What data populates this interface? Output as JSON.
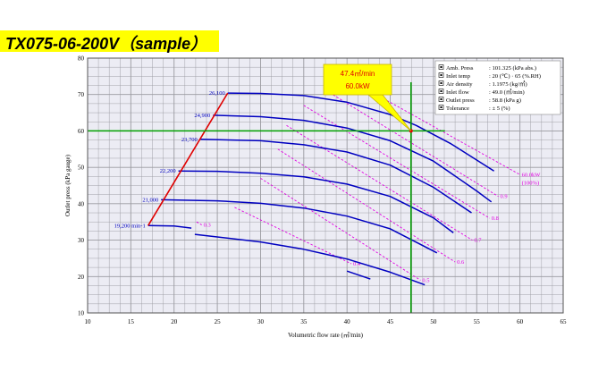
{
  "title": "TX075-06-200V（sample）",
  "colors": {
    "background": "#ececf4",
    "grid": "#9a9aa0",
    "performance_curve": "#0000c0",
    "power_curve": "#e000e0",
    "surge_line": "#e00000",
    "operating_point_cross": "#00a000",
    "callout_fill": "#ffff00",
    "callout_text": "#e00000",
    "title_bar": "#ffff00"
  },
  "callout": {
    "line1": "47.4㎥/min",
    "line2": "60.0kW"
  },
  "conditions": [
    {
      "label": "Amb. Press",
      "value": ": 101.325 (kPa abs.)"
    },
    {
      "label": "Inlet temp",
      "value": ": 20 (℃) · 65 (%.RH)"
    },
    {
      "label": "Air density",
      "value": ": 1.1975 (kg/㎥)"
    },
    {
      "label": "Inlet flow",
      "value": ": 49.0 (㎥/min)"
    },
    {
      "label": "Outlet press",
      "value": ": 58.8 (kPa g)"
    },
    {
      "label": "Tolerance",
      "value": ": ± 5 (%)"
    }
  ],
  "chart_data": {
    "type": "line",
    "xlabel": "Volumetric flow rate (㎥/min)",
    "ylabel": "Outlet press (kPa gauge)",
    "xlim": [
      10,
      65
    ],
    "ylim": [
      10,
      80
    ],
    "x_ticks": [
      10,
      15,
      20,
      25,
      30,
      35,
      40,
      45,
      50,
      55,
      60,
      65
    ],
    "y_ticks": [
      10,
      20,
      30,
      40,
      50,
      60,
      70,
      80
    ],
    "grid": true,
    "speed_unit": "min-1",
    "speed_curves": [
      {
        "speed": "26,100",
        "points": [
          [
            26.2,
            70.4
          ],
          [
            30,
            70.3
          ],
          [
            35,
            69.7
          ],
          [
            40,
            67.9
          ],
          [
            45,
            64.5
          ],
          [
            48,
            61.5
          ],
          [
            52,
            56.5
          ],
          [
            57,
            49
          ]
        ]
      },
      {
        "speed": "24,900",
        "points": [
          [
            24.5,
            64.3
          ],
          [
            30,
            63.9
          ],
          [
            35,
            62.9
          ],
          [
            40,
            60.8
          ],
          [
            45,
            57.3
          ],
          [
            50,
            51.7
          ],
          [
            55,
            43.5
          ],
          [
            56.7,
            40.5
          ]
        ]
      },
      {
        "speed": "23,700",
        "points": [
          [
            23,
            57.7
          ],
          [
            30,
            57.3
          ],
          [
            35,
            56.2
          ],
          [
            40,
            54.2
          ],
          [
            45,
            50.6
          ],
          [
            50,
            44.5
          ],
          [
            54.4,
            37.5
          ]
        ]
      },
      {
        "speed": "22,200",
        "points": [
          [
            20.5,
            49
          ],
          [
            25,
            48.9
          ],
          [
            30,
            48.4
          ],
          [
            35,
            47.4
          ],
          [
            40,
            45.4
          ],
          [
            45,
            42
          ],
          [
            50,
            36.1
          ],
          [
            52.3,
            32
          ]
        ]
      },
      {
        "speed": "21,000",
        "points": [
          [
            18.5,
            41.1
          ],
          [
            25,
            40.8
          ],
          [
            30,
            40.1
          ],
          [
            35,
            38.8
          ],
          [
            40,
            36.6
          ],
          [
            45,
            33.1
          ],
          [
            50.4,
            26.5
          ]
        ]
      },
      {
        "speed": "19,200",
        "points": [
          [
            17,
            34
          ],
          [
            20,
            33.9
          ],
          [
            22,
            33.3
          ]
        ]
      },
      {
        "speed": "",
        "points": [
          [
            22.4,
            31.6
          ],
          [
            30,
            29.5
          ],
          [
            35,
            27.5
          ],
          [
            40,
            24.8
          ],
          [
            45,
            21.2
          ],
          [
            49,
            17.7
          ]
        ]
      },
      {
        "speed": "",
        "points": [
          [
            40,
            21.5
          ],
          [
            42.7,
            19.3
          ]
        ]
      }
    ],
    "surge_line": [
      [
        17,
        34
      ],
      [
        26.2,
        70.4
      ]
    ],
    "power_lines": [
      {
        "label": "0.3",
        "points": [
          [
            22.6,
            35
          ],
          [
            23.2,
            34.2
          ]
        ]
      },
      {
        "label": "0.4",
        "points": [
          [
            27,
            39
          ],
          [
            40.5,
            23.5
          ]
        ]
      },
      {
        "label": "0.5",
        "points": [
          [
            30,
            47
          ],
          [
            48.5,
            19
          ]
        ]
      },
      {
        "label": "0.6",
        "points": [
          [
            32,
            55
          ],
          [
            52.5,
            24
          ]
        ]
      },
      {
        "label": "0.7",
        "points": [
          [
            33,
            61.5
          ],
          [
            54.5,
            30
          ]
        ]
      },
      {
        "label": "0.8",
        "points": [
          [
            35,
            67
          ],
          [
            56.5,
            36
          ]
        ]
      },
      {
        "label": "0.9",
        "points": [
          [
            38,
            70.5
          ],
          [
            57.5,
            42
          ]
        ]
      },
      {
        "label": "60.0kW\n(100%)",
        "points": [
          [
            43,
            70.5
          ],
          [
            60,
            48
          ]
        ]
      }
    ],
    "operating_point": {
      "x": 47.4,
      "y": 60.0
    }
  }
}
